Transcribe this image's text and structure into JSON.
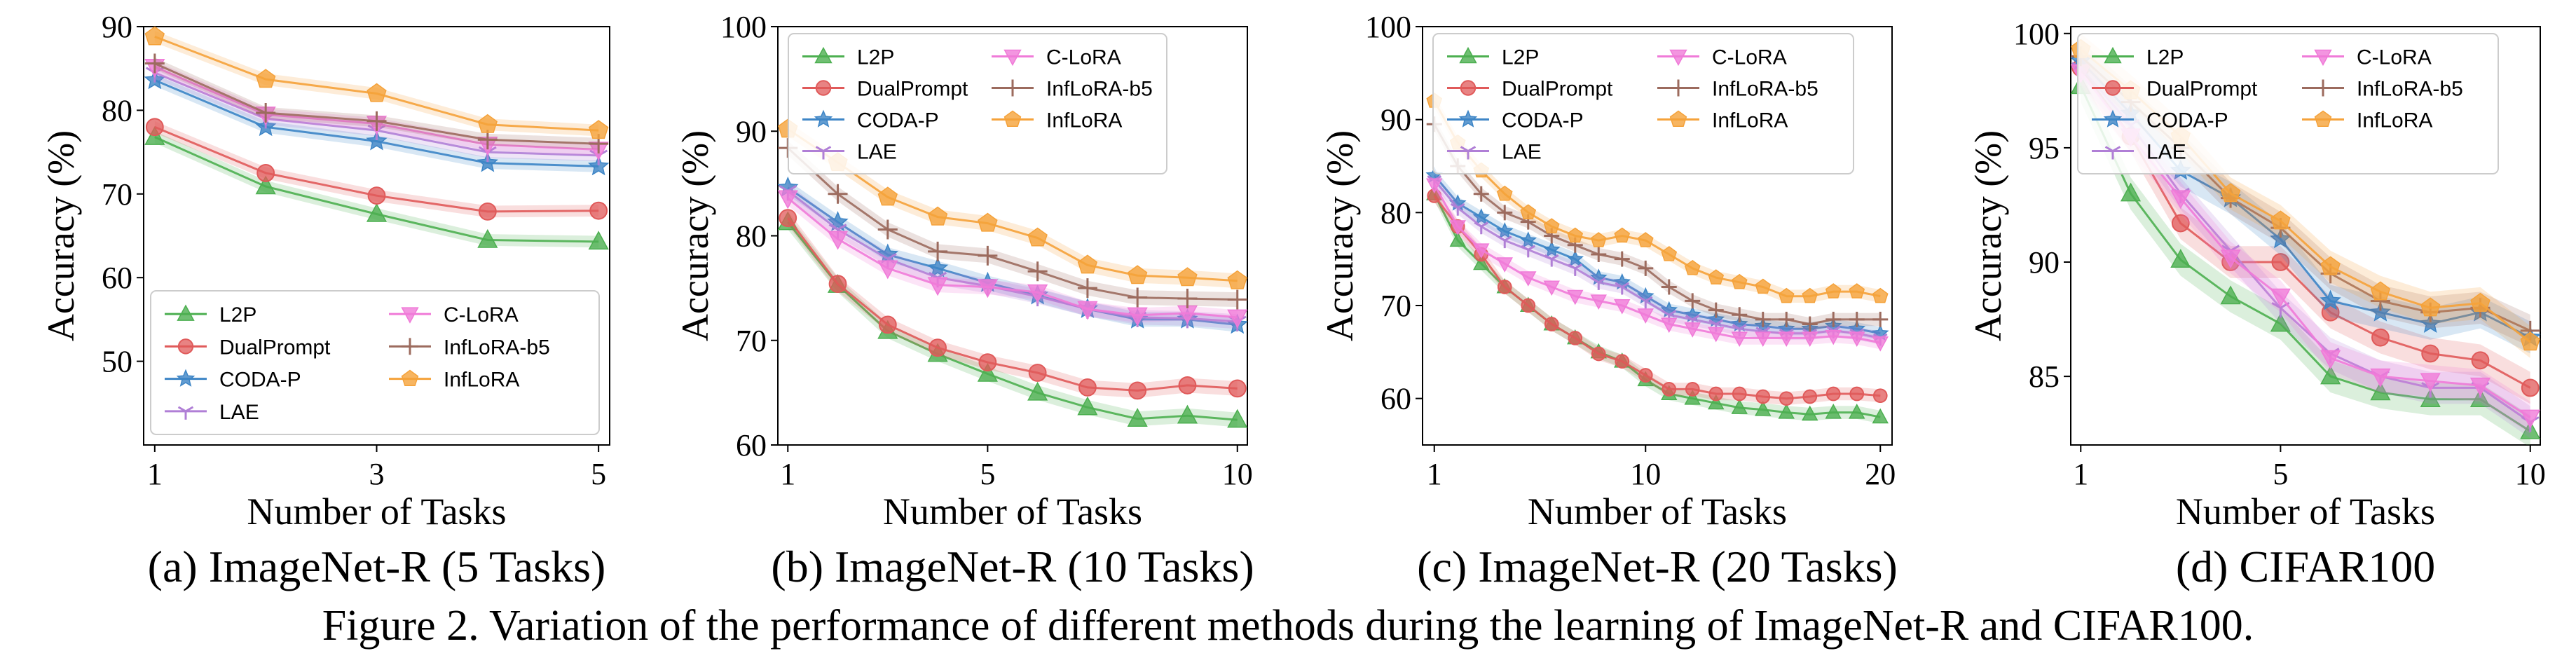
{
  "figure_caption": "Figure 2. Variation of the performance of different methods during the learning of ImageNet-R and CIFAR100.",
  "series_styles": [
    {
      "name": "L2P",
      "color": "#4caf50",
      "marker": "triangle-up"
    },
    {
      "name": "DualPrompt",
      "color": "#e05a5a",
      "marker": "circle"
    },
    {
      "name": "CODA-P",
      "color": "#3d85c6",
      "marker": "star"
    },
    {
      "name": "LAE",
      "color": "#b07fd6",
      "marker": "tri-down"
    },
    {
      "name": "C-LoRA",
      "color": "#f07ad8",
      "marker": "triangle-down"
    },
    {
      "name": "InfLoRA-b5",
      "color": "#9c6b5e",
      "marker": "plus"
    },
    {
      "name": "InfLoRA",
      "color": "#f5a23a",
      "marker": "pentagon"
    }
  ],
  "chart_data": [
    {
      "type": "line",
      "caption": "(a) ImageNet-R (5 Tasks)",
      "xlabel": "Number of Tasks",
      "ylabel": "Accuracy (%)",
      "xlim": [
        0.9,
        5.1
      ],
      "ylim": [
        40,
        90
      ],
      "xticks": [
        1,
        3,
        5
      ],
      "yticks": [
        50,
        60,
        70,
        80,
        90
      ],
      "legend_loc": "lower-center",
      "x": [
        1,
        2,
        3,
        4,
        5
      ],
      "series": [
        {
          "name": "L2P",
          "values": [
            76.8,
            70.9,
            67.6,
            64.5,
            64.3
          ]
        },
        {
          "name": "DualPrompt",
          "values": [
            78.0,
            72.5,
            69.8,
            67.9,
            68.0
          ]
        },
        {
          "name": "CODA-P",
          "values": [
            83.6,
            78.0,
            76.3,
            73.7,
            73.3
          ]
        },
        {
          "name": "LAE",
          "values": [
            84.5,
            79.0,
            77.6,
            75.0,
            74.6
          ]
        },
        {
          "name": "C-LoRA",
          "values": [
            85.2,
            79.5,
            78.4,
            75.9,
            75.3
          ]
        },
        {
          "name": "InfLoRA-b5",
          "values": [
            85.6,
            79.7,
            78.7,
            76.5,
            76.0
          ]
        },
        {
          "name": "InfLoRA",
          "values": [
            88.8,
            83.7,
            82.0,
            78.3,
            77.6
          ]
        }
      ]
    },
    {
      "type": "line",
      "caption": "(b) ImageNet-R (10 Tasks)",
      "xlabel": "Number of Tasks",
      "ylabel": "Accuracy (%)",
      "xlim": [
        0.8,
        10.2
      ],
      "ylim": [
        60,
        100
      ],
      "xticks": [
        1,
        5,
        10
      ],
      "yticks": [
        60,
        70,
        80,
        90,
        100
      ],
      "legend_loc": "top-center",
      "x": [
        1,
        2,
        3,
        4,
        5,
        6,
        7,
        8,
        9,
        10
      ],
      "series": [
        {
          "name": "L2P",
          "values": [
            81.3,
            75.3,
            70.9,
            68.7,
            66.8,
            65.0,
            63.6,
            62.5,
            62.8,
            62.4
          ]
        },
        {
          "name": "DualPrompt",
          "values": [
            81.7,
            75.4,
            71.5,
            69.3,
            67.9,
            66.9,
            65.5,
            65.2,
            65.7,
            65.4
          ]
        },
        {
          "name": "CODA-P",
          "values": [
            84.6,
            81.3,
            78.2,
            76.9,
            75.5,
            74.3,
            73.0,
            72.0,
            72.0,
            71.5
          ]
        },
        {
          "name": "LAE",
          "values": [
            84.3,
            80.6,
            77.8,
            76.0,
            75.2,
            74.2,
            73.0,
            72.2,
            72.1,
            71.8
          ]
        },
        {
          "name": "C-LoRA",
          "values": [
            83.6,
            79.7,
            76.9,
            75.3,
            75.1,
            74.6,
            73.0,
            72.4,
            72.6,
            72.2
          ]
        },
        {
          "name": "InfLoRA-b5",
          "values": [
            88.4,
            84.0,
            80.6,
            78.5,
            78.1,
            76.6,
            75.0,
            74.1,
            74.0,
            73.9
          ]
        },
        {
          "name": "InfLoRA",
          "values": [
            90.2,
            87.0,
            83.7,
            81.8,
            81.2,
            79.8,
            77.2,
            76.2,
            76.0,
            75.7
          ]
        }
      ]
    },
    {
      "type": "line",
      "caption": "(c) ImageNet-R (20 Tasks)",
      "xlabel": "Number of Tasks",
      "ylabel": "Accuracy (%)",
      "xlim": [
        0.5,
        20.5
      ],
      "ylim": [
        55,
        100
      ],
      "xticks": [
        1,
        10,
        20
      ],
      "yticks": [
        60,
        70,
        80,
        90,
        100
      ],
      "legend_loc": "top-center",
      "x": [
        1,
        2,
        3,
        4,
        5,
        6,
        7,
        8,
        9,
        10,
        11,
        12,
        13,
        14,
        15,
        16,
        17,
        18,
        19,
        20
      ],
      "series": [
        {
          "name": "L2P",
          "values": [
            82.0,
            77.0,
            74.5,
            72.0,
            70.0,
            68.0,
            66.5,
            65.0,
            64.0,
            62.0,
            60.5,
            60.0,
            59.5,
            59.0,
            58.8,
            58.5,
            58.3,
            58.5,
            58.5,
            58.0
          ]
        },
        {
          "name": "DualPrompt",
          "values": [
            81.8,
            78.5,
            75.5,
            72.0,
            70.0,
            68.0,
            66.5,
            64.8,
            64.0,
            62.5,
            61.0,
            61.0,
            60.5,
            60.5,
            60.2,
            60.0,
            60.2,
            60.5,
            60.5,
            60.3
          ]
        },
        {
          "name": "CODA-P",
          "values": [
            84.0,
            81.0,
            79.5,
            78.0,
            77.0,
            76.0,
            75.0,
            73.0,
            72.5,
            71.0,
            69.5,
            69.0,
            68.5,
            68.0,
            67.8,
            67.5,
            67.5,
            67.8,
            67.5,
            67.0
          ]
        },
        {
          "name": "LAE",
          "values": [
            83.5,
            80.5,
            78.5,
            77.0,
            76.0,
            75.0,
            74.0,
            72.5,
            72.0,
            70.5,
            69.0,
            68.5,
            68.0,
            67.5,
            67.2,
            67.0,
            67.0,
            67.3,
            67.0,
            66.5
          ]
        },
        {
          "name": "C-LoRA",
          "values": [
            83.0,
            78.5,
            76.0,
            74.5,
            73.0,
            72.0,
            71.0,
            70.5,
            70.0,
            69.0,
            68.0,
            67.5,
            67.0,
            66.5,
            66.5,
            66.5,
            66.5,
            66.7,
            66.5,
            66.0
          ]
        },
        {
          "name": "InfLoRA-b5",
          "values": [
            89.5,
            85.0,
            82.0,
            80.0,
            79.0,
            77.5,
            76.5,
            75.5,
            75.0,
            74.0,
            72.0,
            70.5,
            69.5,
            69.0,
            68.5,
            68.5,
            68.0,
            68.5,
            68.5,
            68.5
          ]
        },
        {
          "name": "InfLoRA",
          "values": [
            92.0,
            87.5,
            84.5,
            82.0,
            80.0,
            78.5,
            77.5,
            77.0,
            77.5,
            77.0,
            75.5,
            74.0,
            73.0,
            72.5,
            72.0,
            71.0,
            71.0,
            71.5,
            71.5,
            71.0
          ]
        }
      ]
    },
    {
      "type": "line",
      "caption": "(d) CIFAR100",
      "xlabel": "Number of Tasks",
      "ylabel": "Accuracy (%)",
      "xlim": [
        0.8,
        10.2
      ],
      "ylim": [
        82,
        100.3
      ],
      "xticks": [
        1,
        5,
        10
      ],
      "yticks": [
        85,
        90,
        95,
        100
      ],
      "legend_loc": "top-center",
      "x": [
        1,
        2,
        3,
        4,
        5,
        6,
        7,
        8,
        9,
        10
      ],
      "series": [
        {
          "name": "L2P",
          "values": [
            97.7,
            93.0,
            90.1,
            88.5,
            87.3,
            85.0,
            84.3,
            84.0,
            84.0,
            82.6
          ]
        },
        {
          "name": "DualPrompt",
          "values": [
            98.5,
            95.5,
            91.7,
            90.0,
            90.0,
            87.8,
            86.7,
            86.0,
            85.7,
            84.5
          ]
        },
        {
          "name": "CODA-P",
          "values": [
            98.8,
            96.5,
            94.0,
            92.8,
            91.0,
            88.3,
            87.8,
            87.3,
            87.8,
            86.7
          ]
        },
        {
          "name": "LAE",
          "values": [
            98.5,
            96.0,
            93.0,
            90.5,
            88.0,
            86.0,
            85.0,
            84.5,
            84.5,
            83.0
          ]
        },
        {
          "name": "C-LoRA",
          "values": [
            98.3,
            95.5,
            92.8,
            90.2,
            88.5,
            85.8,
            85.0,
            84.8,
            84.6,
            83.2
          ]
        },
        {
          "name": "InfLoRA-b5",
          "values": [
            99.0,
            97.0,
            95.0,
            92.8,
            91.5,
            89.5,
            88.3,
            87.8,
            88.0,
            87.0
          ]
        },
        {
          "name": "InfLoRA",
          "values": [
            99.3,
            97.5,
            95.5,
            93.0,
            91.8,
            89.8,
            88.7,
            88.0,
            88.2,
            86.5
          ]
        }
      ]
    }
  ]
}
